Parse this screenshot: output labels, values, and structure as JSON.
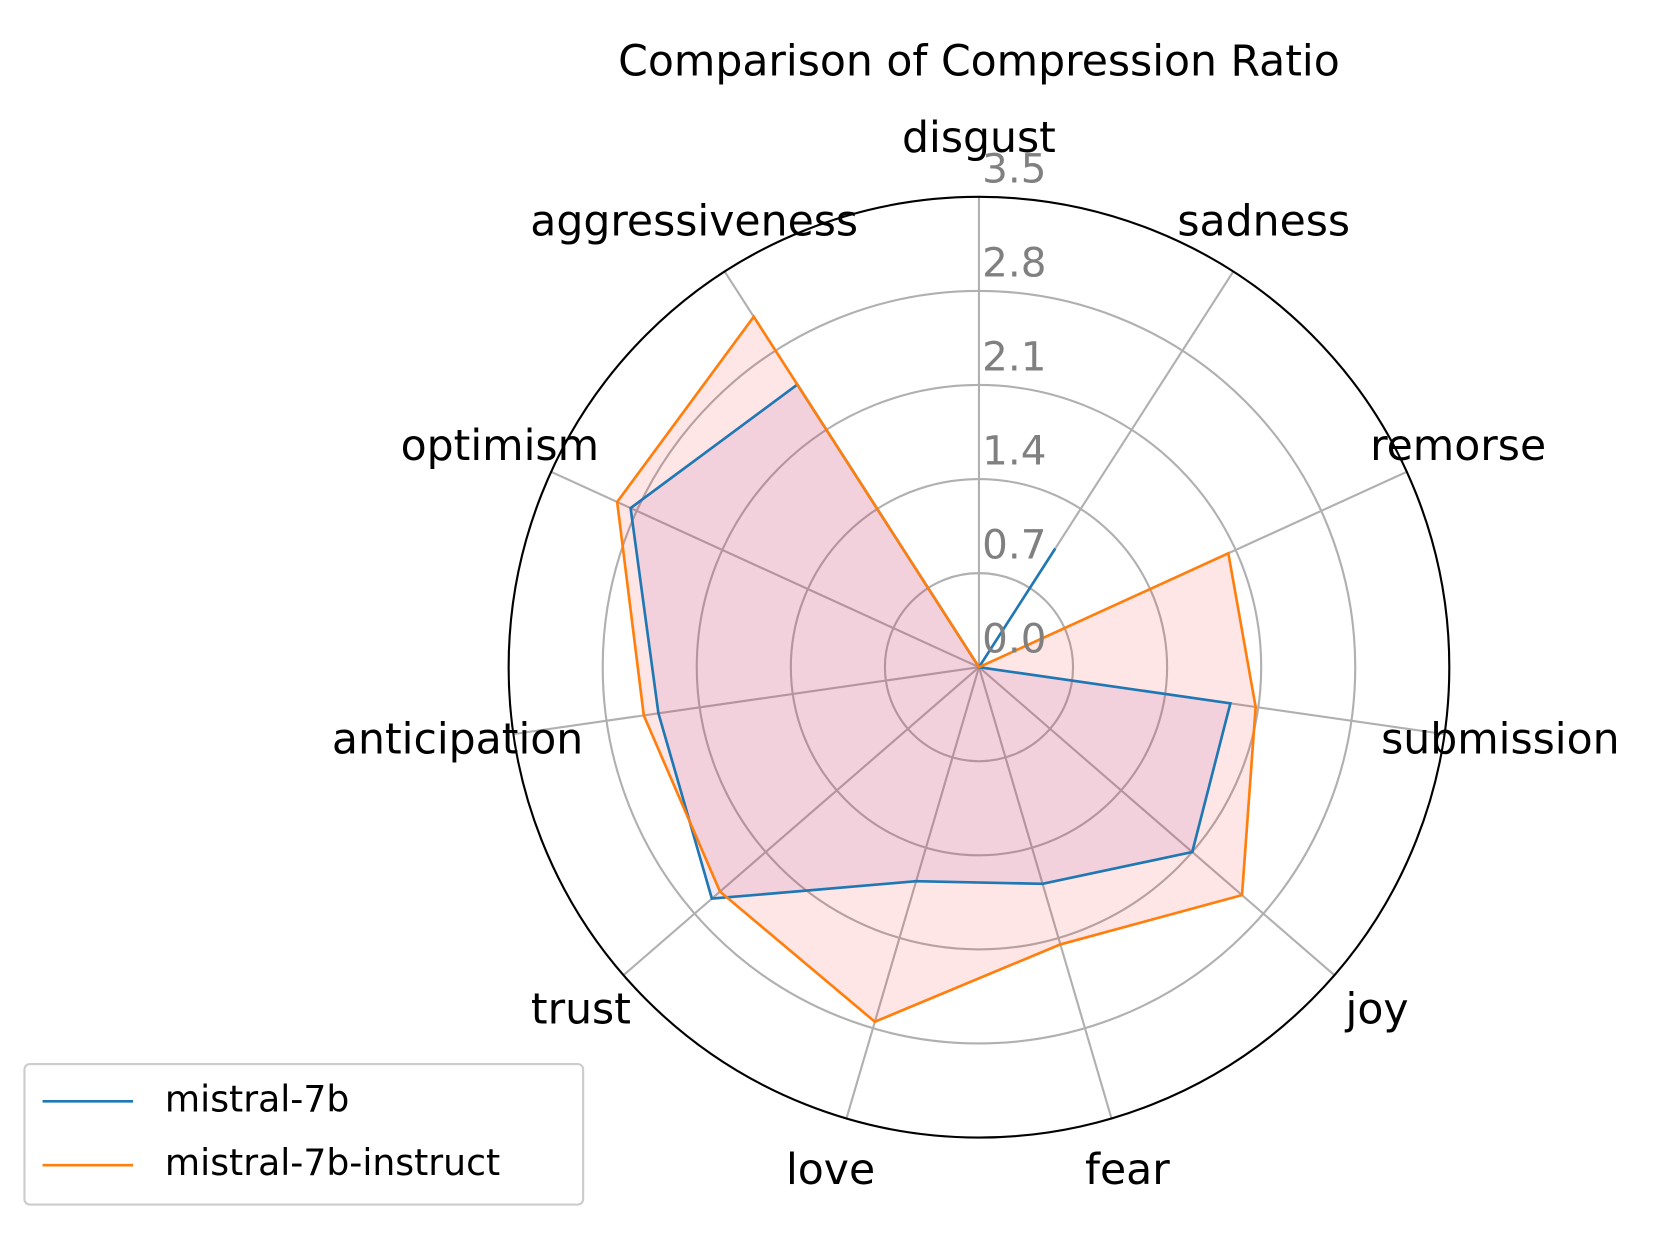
{
  "chart_data": {
    "type": "radar",
    "title": "Comparison of Compression Ratio",
    "categories": [
      "disgust",
      "sadness",
      "remorse",
      "submission",
      "joy",
      "fear",
      "love",
      "trust",
      "anticipation",
      "optimism",
      "aggressiveness"
    ],
    "series": [
      {
        "name": "mistral-7b",
        "color": "#1f77b4",
        "fill": "#8a3fa8",
        "values": [
          0,
          1.05,
          0,
          1.89,
          2.1,
          1.68,
          1.66,
          2.63,
          2.41,
          2.85,
          2.5
        ]
      },
      {
        "name": "mistral-7b-instruct",
        "color": "#ff7f0e",
        "fill": "#ff3030",
        "values": [
          0,
          0,
          2.04,
          2.08,
          2.59,
          2.15,
          2.75,
          2.55,
          2.52,
          2.96,
          3.1
        ]
      }
    ],
    "ylim": [
      0,
      3.5
    ],
    "yticks": [
      {
        "value": 0,
        "label": "0.0"
      },
      0.7,
      1.4,
      2.1,
      2.8,
      3.5
    ],
    "grid": true,
    "legend": "lower left"
  }
}
